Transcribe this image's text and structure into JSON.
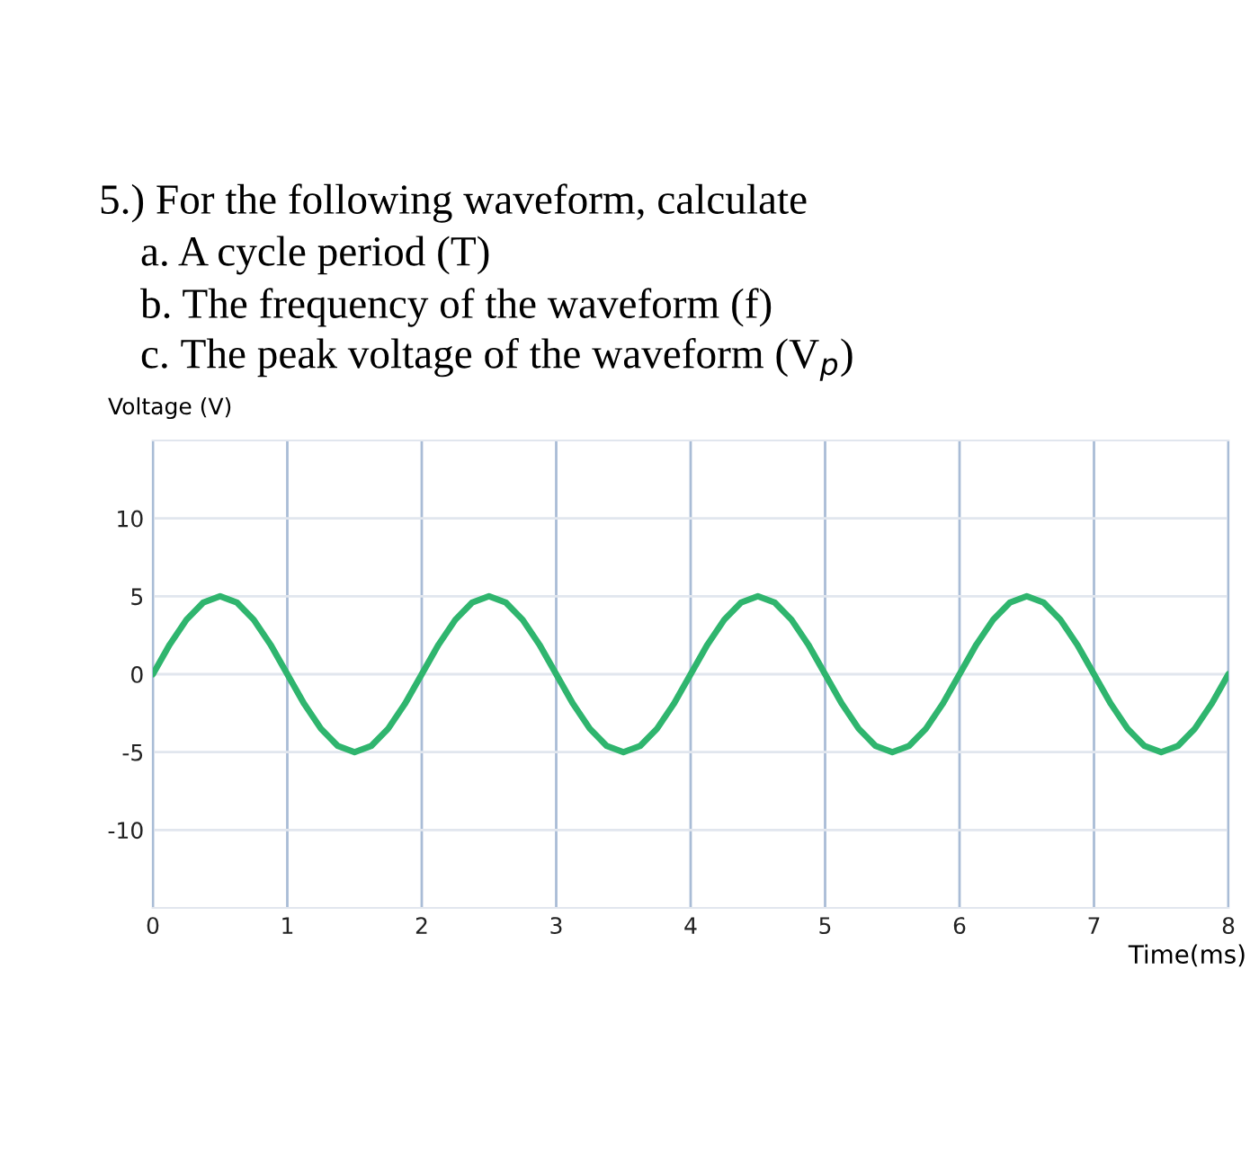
{
  "chart_data": {
    "type": "line",
    "title": "5.) For the following waveform, calculate",
    "annotations": [
      "a. A cycle period (T)",
      "b. The frequency of the waveform (f)",
      "c. The peak voltage of the waveform (V$_{p}$)"
    ],
    "ylabel": "Voltage (V)",
    "xlabel": "Time(ms)",
    "xlim": [
      0,
      8
    ],
    "xticks": [
      0,
      1,
      2,
      3,
      4,
      5,
      6,
      7,
      8
    ],
    "ylim": [
      -15,
      15
    ],
    "yticks": [
      -10,
      -5,
      0,
      5,
      10
    ],
    "grid": true,
    "legend": false,
    "series": [
      {
        "color": "#2fb56e",
        "x": [
          0,
          0.125,
          0.25,
          0.375,
          0.5,
          0.625,
          0.75,
          0.875,
          1,
          1.125,
          1.25,
          1.375,
          1.5,
          1.625,
          1.75,
          1.875,
          2,
          2.125,
          2.25,
          2.375,
          2.5,
          2.625,
          2.75,
          2.875,
          3,
          3.125,
          3.25,
          3.375,
          3.5,
          3.625,
          3.75,
          3.875,
          4,
          4.125,
          4.25,
          4.375,
          4.5,
          4.625,
          4.75,
          4.875,
          5,
          5.125,
          5.25,
          5.375,
          5.5,
          5.625,
          5.75,
          5.875,
          6,
          6.125,
          6.25,
          6.375,
          6.5,
          6.625,
          6.75,
          6.875,
          7,
          7.125,
          7.25,
          7.375,
          7.5,
          7.625,
          7.75,
          7.875,
          8
        ],
        "values": [
          0,
          1.9,
          3.5,
          4.6,
          5,
          4.6,
          3.5,
          1.9,
          0,
          -1.9,
          -3.5,
          -4.6,
          -5,
          -4.6,
          -3.5,
          -1.9,
          0,
          1.9,
          3.5,
          4.6,
          5,
          4.6,
          3.5,
          1.9,
          0,
          -1.9,
          -3.5,
          -4.6,
          -5,
          -4.6,
          -3.5,
          -1.9,
          0,
          1.9,
          3.5,
          4.6,
          5,
          4.6,
          3.5,
          1.9,
          0,
          -1.9,
          -3.5,
          -4.6,
          -5,
          -4.6,
          -3.5,
          -1.9,
          0,
          1.9,
          3.5,
          4.6,
          5,
          4.6,
          3.5,
          1.9,
          0,
          -1.9,
          -3.5,
          -4.6,
          -5,
          -4.6,
          -3.5,
          -1.9,
          0
        ]
      }
    ]
  }
}
